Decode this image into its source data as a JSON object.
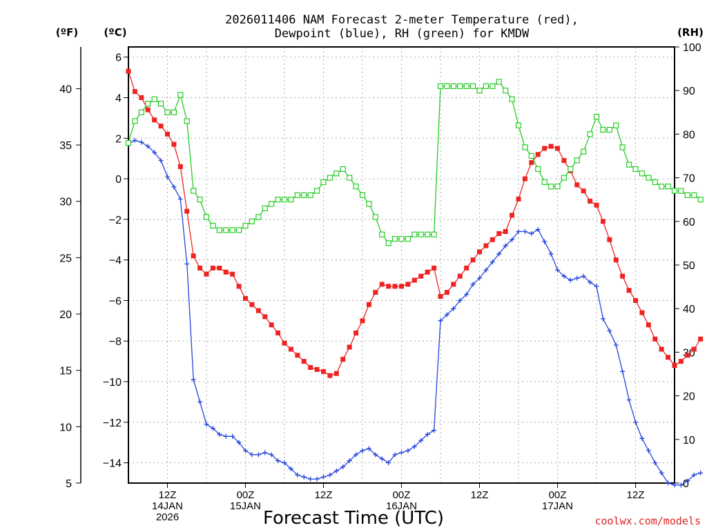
{
  "chart_data": {
    "type": "line",
    "title": "2026011406 NAM Forecast 2-meter Temperature (red),",
    "title2": "Dewpoint (blue), RH (green) for KMDW",
    "xlabel": "Forecast Time (UTC)",
    "credit": "coolwx.com/models",
    "left_unit_f": "(ºF)",
    "left_unit_c": "(ºC)",
    "right_unit": "(RH)",
    "x_unit": "forecast hour from 2026-01-14 06Z",
    "xlim": [
      0,
      84
    ],
    "ylim_c": [
      -15,
      6.5
    ],
    "ylim_f": [
      5,
      43.7
    ],
    "ylim_rh": [
      0,
      100
    ],
    "yticks_c": [
      -14,
      -12,
      -10,
      -8,
      -6,
      -4,
      -2,
      0,
      2,
      4,
      6
    ],
    "yticks_f": [
      5,
      10,
      15,
      20,
      25,
      30,
      35,
      40
    ],
    "yticks_rh": [
      0,
      10,
      20,
      30,
      40,
      50,
      60,
      70,
      80,
      90,
      100
    ],
    "yticklabels_c": [
      "−14",
      "−12",
      "−10",
      "−8",
      "−6",
      "−4",
      "−2",
      "0",
      "2",
      "4",
      "6"
    ],
    "yticklabels_f": [
      "5",
      "10",
      "15",
      "20",
      "25",
      "30",
      "35",
      "40"
    ],
    "yticklabels_rh": [
      "0",
      "10",
      "20",
      "30",
      "40",
      "50",
      "60",
      "70",
      "80",
      "90",
      "100"
    ],
    "xticks": [
      {
        "x": 6,
        "lines": [
          "12Z",
          "14JAN",
          "2026"
        ]
      },
      {
        "x": 18,
        "lines": [
          "00Z",
          "15JAN"
        ]
      },
      {
        "x": 30,
        "lines": [
          "12Z"
        ]
      },
      {
        "x": 42,
        "lines": [
          "00Z",
          "16JAN"
        ]
      },
      {
        "x": 54,
        "lines": [
          "12Z"
        ]
      },
      {
        "x": 66,
        "lines": [
          "00Z",
          "17JAN"
        ]
      },
      {
        "x": 78,
        "lines": [
          "12Z"
        ]
      }
    ],
    "series": [
      {
        "name": "2-meter Temperature (°C)",
        "color": "#ee2222",
        "axis": "C",
        "marker": "filled-square",
        "values": [
          5.3,
          4.3,
          4.0,
          3.4,
          2.9,
          2.6,
          2.2,
          1.7,
          0.6,
          -1.6,
          -3.8,
          -4.4,
          -4.7,
          -4.4,
          -4.4,
          -4.6,
          -4.7,
          -5.3,
          -5.9,
          -6.2,
          -6.5,
          -6.8,
          -7.2,
          -7.6,
          -8.1,
          -8.4,
          -8.7,
          -9.0,
          -9.3,
          -9.4,
          -9.5,
          -9.7,
          -9.6,
          -8.9,
          -8.3,
          -7.6,
          -7.0,
          -6.2,
          -5.6,
          -5.2,
          -5.3,
          -5.3,
          -5.3,
          -5.2,
          -5.0,
          -4.8,
          -4.6,
          -4.4,
          -5.8,
          -5.6,
          -5.2,
          -4.8,
          -4.4,
          -4.0,
          -3.6,
          -3.3,
          -3.0,
          -2.7,
          -2.6,
          -1.8,
          -1.0,
          0.0,
          0.8,
          1.2,
          1.5,
          1.6,
          1.5,
          0.9,
          0.4,
          -0.3,
          -0.6,
          -1.1,
          -1.3,
          -2.1,
          -3.0,
          -4.0,
          -4.8,
          -5.5,
          -6.0,
          -6.6,
          -7.2,
          -7.9,
          -8.4,
          -8.8,
          -9.2,
          -9.0,
          -8.7,
          -8.4,
          -7.9
        ]
      },
      {
        "name": "Dewpoint (°C)",
        "color": "#2244dd",
        "axis": "C",
        "marker": "plus",
        "values": [
          1.7,
          1.9,
          1.8,
          1.6,
          1.3,
          0.9,
          0.1,
          -0.4,
          -1.0,
          -4.2,
          -9.9,
          -11.0,
          -12.1,
          -12.3,
          -12.6,
          -12.7,
          -12.7,
          -13.0,
          -13.4,
          -13.6,
          -13.6,
          -13.5,
          -13.6,
          -13.9,
          -14.0,
          -14.3,
          -14.6,
          -14.7,
          -14.8,
          -14.8,
          -14.7,
          -14.6,
          -14.4,
          -14.2,
          -13.9,
          -13.6,
          -13.4,
          -13.3,
          -13.6,
          -13.8,
          -14.0,
          -13.6,
          -13.5,
          -13.4,
          -13.2,
          -12.9,
          -12.6,
          -12.4,
          -7.0,
          -6.7,
          -6.4,
          -6.0,
          -5.7,
          -5.2,
          -4.9,
          -4.5,
          -4.1,
          -3.7,
          -3.3,
          -3.0,
          -2.6,
          -2.6,
          -2.7,
          -2.5,
          -3.1,
          -3.7,
          -4.5,
          -4.8,
          -5.0,
          -4.9,
          -4.8,
          -5.1,
          -5.3,
          -6.9,
          -7.5,
          -8.2,
          -9.5,
          -10.9,
          -12.0,
          -12.8,
          -13.4,
          -14.0,
          -14.5,
          -15.0,
          -15.1,
          -15.1,
          -14.9,
          -14.6,
          -14.5
        ]
      },
      {
        "name": "RH (%)",
        "color": "#22cc22",
        "axis": "RH",
        "marker": "open-square",
        "values": [
          78,
          83,
          85,
          87,
          88,
          87,
          85,
          85,
          89,
          83,
          67,
          65,
          61,
          59,
          58,
          58,
          58,
          58,
          59,
          60,
          61,
          63,
          64,
          65,
          65,
          65,
          66,
          66,
          66,
          67,
          69,
          70,
          71,
          72,
          70,
          68,
          66,
          64,
          61,
          57,
          55,
          56,
          56,
          56,
          57,
          57,
          57,
          57,
          91,
          91,
          91,
          91,
          91,
          91,
          90,
          91,
          91,
          92,
          90,
          88,
          82,
          77,
          75,
          72,
          69,
          68,
          68,
          70,
          72,
          74,
          76,
          80,
          84,
          81,
          81,
          82,
          77,
          73,
          72,
          71,
          70,
          69,
          68,
          68,
          67,
          67,
          66,
          66,
          65
        ]
      }
    ]
  }
}
